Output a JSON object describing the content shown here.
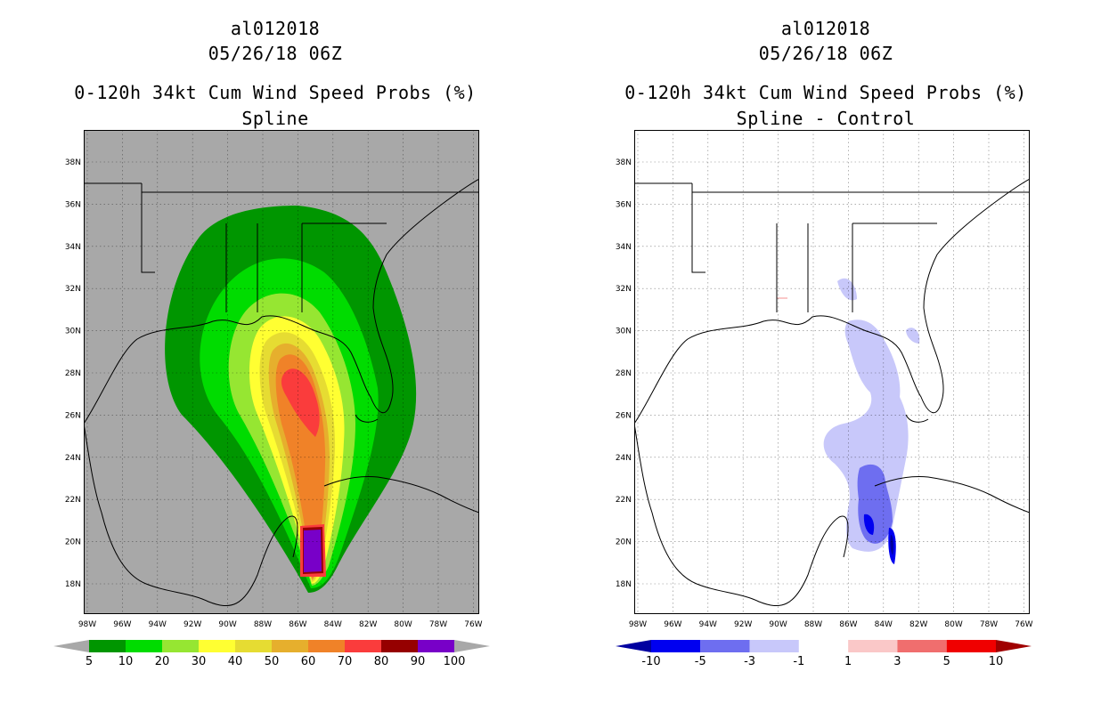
{
  "left_panel": {
    "storm": "al012018",
    "time": "05/26/18 06Z",
    "product": "0-120h 34kt Cum Wind Speed Probs (%)",
    "subtitle": "Spline",
    "colorbar": {
      "labels": [
        "5",
        "10",
        "20",
        "30",
        "40",
        "50",
        "60",
        "70",
        "80",
        "90",
        "100"
      ],
      "colors": [
        "#009600",
        "#00dc00",
        "#96e632",
        "#ffff32",
        "#e6dc32",
        "#e6af2d",
        "#f08228",
        "#fa3c3c",
        "#960000",
        "#7800c8"
      ],
      "ends": [
        "#a8a8a8",
        "#a8a8a8"
      ]
    }
  },
  "right_panel": {
    "storm": "al012018",
    "time": "05/26/18 06Z",
    "product": "0-120h 34kt Cum Wind Speed Probs (%)",
    "subtitle": "Spline - Control",
    "colorbar": {
      "labels": [
        "-10",
        "-5",
        "-3",
        "-1",
        "1",
        "3",
        "5",
        "10"
      ],
      "colors": [
        "#0000f0",
        "#6e6ef0",
        "#c8c8fa",
        "#ffffff",
        "#fac8c8",
        "#f06e6e",
        "#f00000"
      ],
      "ends": [
        "#0000a0",
        "#a00000"
      ]
    }
  },
  "map": {
    "lat_labels": [
      "38N",
      "36N",
      "34N",
      "32N",
      "30N",
      "28N",
      "26N",
      "24N",
      "22N",
      "20N",
      "18N"
    ],
    "lon_labels": [
      "98W",
      "96W",
      "94W",
      "92W",
      "90W",
      "88W",
      "86W",
      "84W",
      "82W",
      "80W",
      "78W",
      "76W"
    ],
    "land_color": "#a8a8a8"
  }
}
